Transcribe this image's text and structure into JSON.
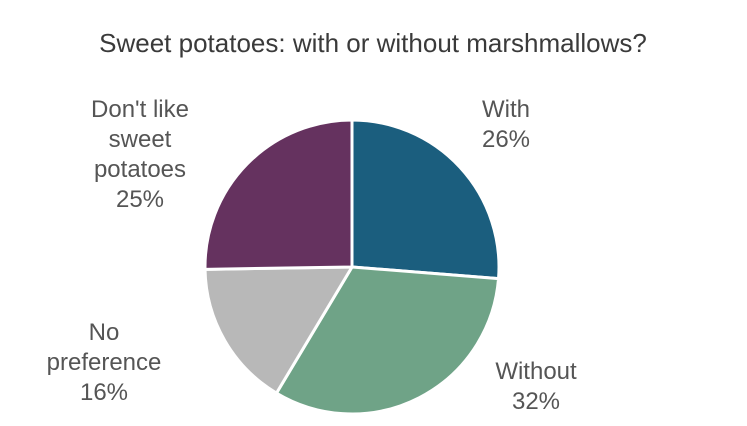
{
  "chart_data": {
    "type": "pie",
    "title": "Sweet potatoes: with or without marshmallows?",
    "categories": [
      "With",
      "Without",
      "No preference",
      "Don't like sweet potatoes"
    ],
    "values": [
      26,
      32,
      16,
      25
    ],
    "value_labels": [
      "26%",
      "32%",
      "16%",
      "25%"
    ],
    "colors": [
      "#1b5e7e",
      "#6fa387",
      "#b8b8b8",
      "#65325f"
    ]
  }
}
